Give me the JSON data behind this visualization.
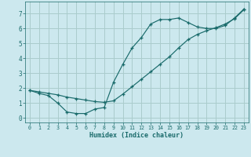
{
  "xlabel": "Humidex (Indice chaleur)",
  "bg_color": "#cce8ee",
  "grid_color": "#aacccc",
  "line_color": "#1a6b6b",
  "line1_x": [
    0,
    1,
    2,
    3,
    4,
    5,
    6,
    7,
    8,
    9,
    10,
    11,
    12,
    13,
    14,
    15,
    16,
    17,
    18,
    19,
    20,
    21,
    22,
    23
  ],
  "line1_y": [
    1.85,
    1.65,
    1.5,
    1.0,
    0.4,
    0.3,
    0.3,
    0.6,
    0.7,
    2.4,
    3.6,
    4.7,
    5.4,
    6.3,
    6.6,
    6.6,
    6.7,
    6.4,
    6.1,
    6.0,
    6.0,
    6.2,
    6.7,
    7.3
  ],
  "line2_x": [
    0,
    1,
    2,
    3,
    4,
    5,
    6,
    7,
    8,
    9,
    10,
    11,
    12,
    13,
    14,
    15,
    16,
    17,
    18,
    19,
    20,
    21,
    22,
    23
  ],
  "line2_y": [
    1.85,
    1.75,
    1.65,
    1.55,
    1.4,
    1.3,
    1.2,
    1.1,
    1.05,
    1.15,
    1.6,
    2.1,
    2.6,
    3.1,
    3.6,
    4.1,
    4.7,
    5.25,
    5.6,
    5.85,
    6.05,
    6.3,
    6.65,
    7.25
  ],
  "xlim": [
    -0.5,
    23.5
  ],
  "ylim": [
    -0.3,
    7.8
  ],
  "xticks": [
    0,
    1,
    2,
    3,
    4,
    5,
    6,
    7,
    8,
    9,
    10,
    11,
    12,
    13,
    14,
    15,
    16,
    17,
    18,
    19,
    20,
    21,
    22,
    23
  ],
  "yticks": [
    0,
    1,
    2,
    3,
    4,
    5,
    6,
    7
  ]
}
